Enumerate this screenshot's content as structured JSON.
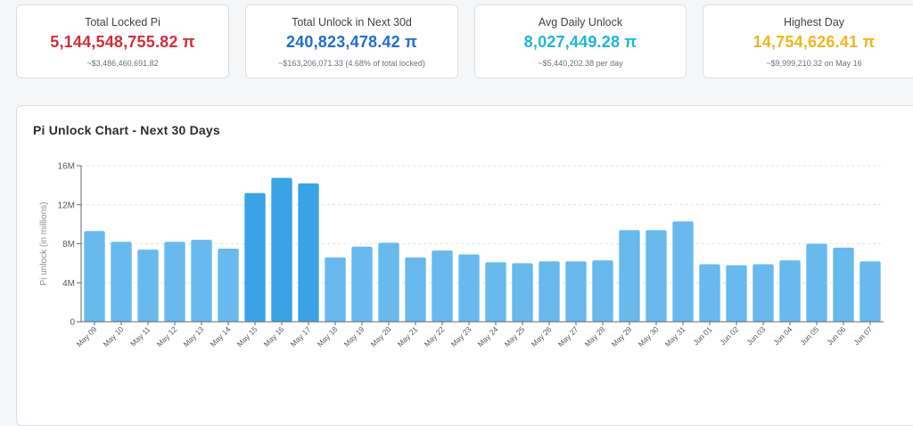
{
  "cards": [
    {
      "label": "Total Locked Pi",
      "value": "5,144,548,755.82 π",
      "sub": "~$3,486,460,691.82",
      "color": "#d32f3a"
    },
    {
      "label": "Total Unlock in Next 30d",
      "value": "240,823,478.42 π",
      "sub": "~$163,206,071.33 (4.68% of total locked)",
      "color": "#1f6fd1"
    },
    {
      "label": "Avg Daily Unlock",
      "value": "8,027,449.28 π",
      "sub": "~$5,440,202.38 per day",
      "color": "#1cb8d6"
    },
    {
      "label": "Highest Day",
      "value": "14,754,626.41 π",
      "sub": "~$9,999,210.32 on May 16",
      "color": "#f2b51d"
    }
  ],
  "panel": {
    "title": "Pi Unlock Chart - Next 30 Days"
  },
  "chart_data": {
    "type": "bar",
    "title": "Pi Unlock Chart - Next 30 Days",
    "xlabel": "",
    "ylabel": "Pi unlock (in millions)",
    "ylim": [
      0,
      16000000
    ],
    "yticks": [
      0,
      4000000,
      8000000,
      12000000,
      16000000
    ],
    "ytick_labels": [
      "0",
      "4M",
      "8M",
      "12M",
      "16M"
    ],
    "grid": true,
    "categories": [
      "May 09",
      "May 10",
      "May 11",
      "May 12",
      "May 13",
      "May 14",
      "May 15",
      "May 16",
      "May 17",
      "May 18",
      "May 19",
      "May 20",
      "May 21",
      "May 22",
      "May 23",
      "May 24",
      "May 25",
      "May 26",
      "May 27",
      "May 28",
      "May 29",
      "May 30",
      "May 31",
      "Jun 01",
      "Jun 02",
      "Jun 03",
      "Jun 04",
      "Jun 05",
      "Jun 06",
      "Jun 07"
    ],
    "values": [
      9300000,
      8200000,
      7400000,
      8200000,
      8400000,
      7500000,
      13200000,
      14754626.41,
      14200000,
      6600000,
      7700000,
      8100000,
      6600000,
      7300000,
      6900000,
      6100000,
      6000000,
      6200000,
      6200000,
      6300000,
      9400000,
      9400000,
      10300000,
      5900000,
      5800000,
      5900000,
      6300000,
      8000000,
      7600000,
      6200000
    ],
    "highlight": [
      "May 15",
      "May 16",
      "May 17"
    ],
    "colors": {
      "bar": "#68b9ee",
      "highlight": "#3aa3e8",
      "grid": "#e2e4e7"
    }
  }
}
